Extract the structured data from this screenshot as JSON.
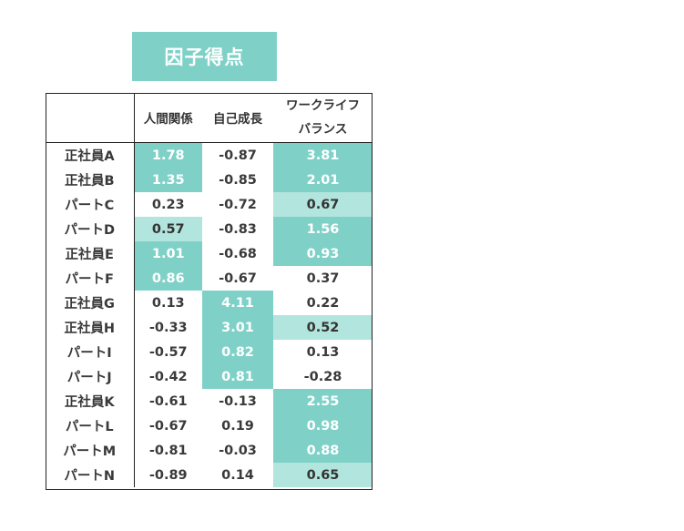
{
  "title": "因子得点",
  "columns": [
    "人間関係",
    "自己成長",
    "ワークライフ",
    "バランス"
  ],
  "highlight_colors": {
    "strong": "#7fd1c8",
    "light": "#b2e5de"
  },
  "rows": [
    {
      "label": "正社員A",
      "v1": "1.78",
      "v2": "-0.87",
      "v3": "3.81",
      "h1": "strong",
      "h2": "",
      "h3": "strong"
    },
    {
      "label": "正社員B",
      "v1": "1.35",
      "v2": "-0.85",
      "v3": "2.01",
      "h1": "strong",
      "h2": "",
      "h3": "strong"
    },
    {
      "label": "パートC",
      "v1": "0.23",
      "v2": "-0.72",
      "v3": "0.67",
      "h1": "",
      "h2": "",
      "h3": "light"
    },
    {
      "label": "パートD",
      "v1": "0.57",
      "v2": "-0.83",
      "v3": "1.56",
      "h1": "light",
      "h2": "",
      "h3": "strong"
    },
    {
      "label": "正社員E",
      "v1": "1.01",
      "v2": "-0.68",
      "v3": "0.93",
      "h1": "strong",
      "h2": "",
      "h3": "strong"
    },
    {
      "label": "パートF",
      "v1": "0.86",
      "v2": "-0.67",
      "v3": "0.37",
      "h1": "strong",
      "h2": "",
      "h3": ""
    },
    {
      "label": "正社員G",
      "v1": "0.13",
      "v2": "4.11",
      "v3": "0.22",
      "h1": "",
      "h2": "strong",
      "h3": ""
    },
    {
      "label": "正社員H",
      "v1": "-0.33",
      "v2": "3.01",
      "v3": "0.52",
      "h1": "",
      "h2": "strong",
      "h3": "light"
    },
    {
      "label": "パートI",
      "v1": "-0.57",
      "v2": "0.82",
      "v3": "0.13",
      "h1": "",
      "h2": "strong",
      "h3": ""
    },
    {
      "label": "パートJ",
      "v1": "-0.42",
      "v2": "0.81",
      "v3": "-0.28",
      "h1": "",
      "h2": "strong",
      "h3": ""
    },
    {
      "label": "正社員K",
      "v1": "-0.61",
      "v2": "-0.13",
      "v3": "2.55",
      "h1": "",
      "h2": "",
      "h3": "strong"
    },
    {
      "label": "パートL",
      "v1": "-0.67",
      "v2": "0.19",
      "v3": "0.98",
      "h1": "",
      "h2": "",
      "h3": "strong"
    },
    {
      "label": "パートM",
      "v1": "-0.81",
      "v2": "-0.03",
      "v3": "0.88",
      "h1": "",
      "h2": "",
      "h3": "strong"
    },
    {
      "label": "パートN",
      "v1": "-0.89",
      "v2": "0.14",
      "v3": "0.65",
      "h1": "",
      "h2": "",
      "h3": "light"
    }
  ]
}
